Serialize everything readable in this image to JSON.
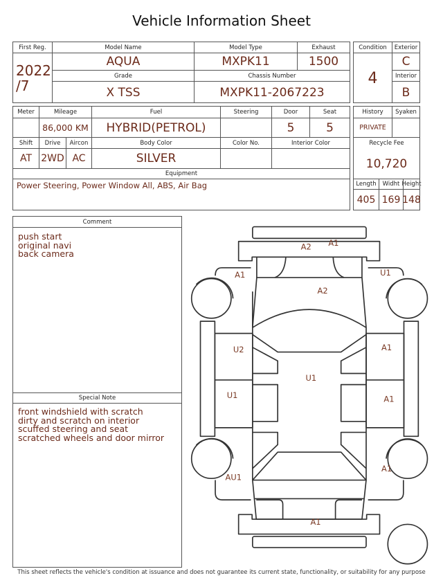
{
  "title": "Vehicle Information Sheet",
  "basic": {
    "first_reg_label": "First Reg.",
    "first_reg_year": "2022",
    "first_reg_month": "/7",
    "model_name_label": "Model Name",
    "model_name": "AQUA",
    "model_type_label": "Model Type",
    "model_type": "MXPK11",
    "exhaust_label": "Exhaust",
    "exhaust": "1500",
    "grade_label": "Grade",
    "grade": "X TSS",
    "chassis_label": "Chassis Number",
    "chassis": "MXPK11-2067223"
  },
  "condition": {
    "condition_label": "Condition",
    "condition": "4",
    "exterior_label": "Exterior",
    "exterior": "C",
    "interior_label": "Interior",
    "interior": "B"
  },
  "specs": {
    "meter_label": "Meter",
    "meter": "",
    "mileage_label": "Mileage",
    "mileage": "86,000 KM",
    "fuel_label": "Fuel",
    "fuel": "HYBRID(PETROL)",
    "steering_label": "Steering",
    "steering": "",
    "door_label": "Door",
    "door": "5",
    "seat_label": "Seat",
    "seat": "5",
    "shift_label": "Shift",
    "shift": "AT",
    "drive_label": "Drive",
    "drive": "2WD",
    "aircon_label": "Aircon",
    "aircon": "AC",
    "body_color_label": "Body Color",
    "body_color": "SILVER",
    "color_no_label": "Color No.",
    "color_no": "",
    "interior_color_label": "Interior Color",
    "interior_color": "",
    "equipment_label": "Equipment",
    "equipment": "Power Steering, Power Window  All, ABS, Air Bag"
  },
  "history": {
    "history_label": "History",
    "history": "PRIVATE",
    "syaken_label": "Syaken",
    "syaken": "",
    "recycle_fee_label": "Recycle Fee",
    "recycle_fee": "10,720",
    "length_label": "Length",
    "length": "405",
    "width_label": "Widht",
    "width": "169",
    "height_label": "Height",
    "height": "148"
  },
  "comment": {
    "label": "Comment",
    "lines": [
      "push start",
      "original navi",
      "back camera"
    ]
  },
  "special_note": {
    "label": "Special Note",
    "lines": [
      "front windshield with scratch",
      "dirty and scratch on interior",
      "scuffed steering and seat",
      "scratched wheels and door mirror"
    ]
  },
  "damage_map": {
    "front_bumper_1": "A2",
    "front_bumper_2": "A1",
    "left_front_fender": "A1",
    "right_front_fender": "U1",
    "hood": "A2",
    "left_front_door": "U2",
    "right_front_door": "A1",
    "roof": "U1",
    "left_rear_door": "U1",
    "right_rear_door": "A1",
    "left_rear_fender": "AU1",
    "right_rear_fender": "A1",
    "rear_bumper": "A1"
  },
  "footer": "This sheet reflects the vehicle's condition at issuance and does not guarantee its current state, functionality, or suitability for any purpose"
}
